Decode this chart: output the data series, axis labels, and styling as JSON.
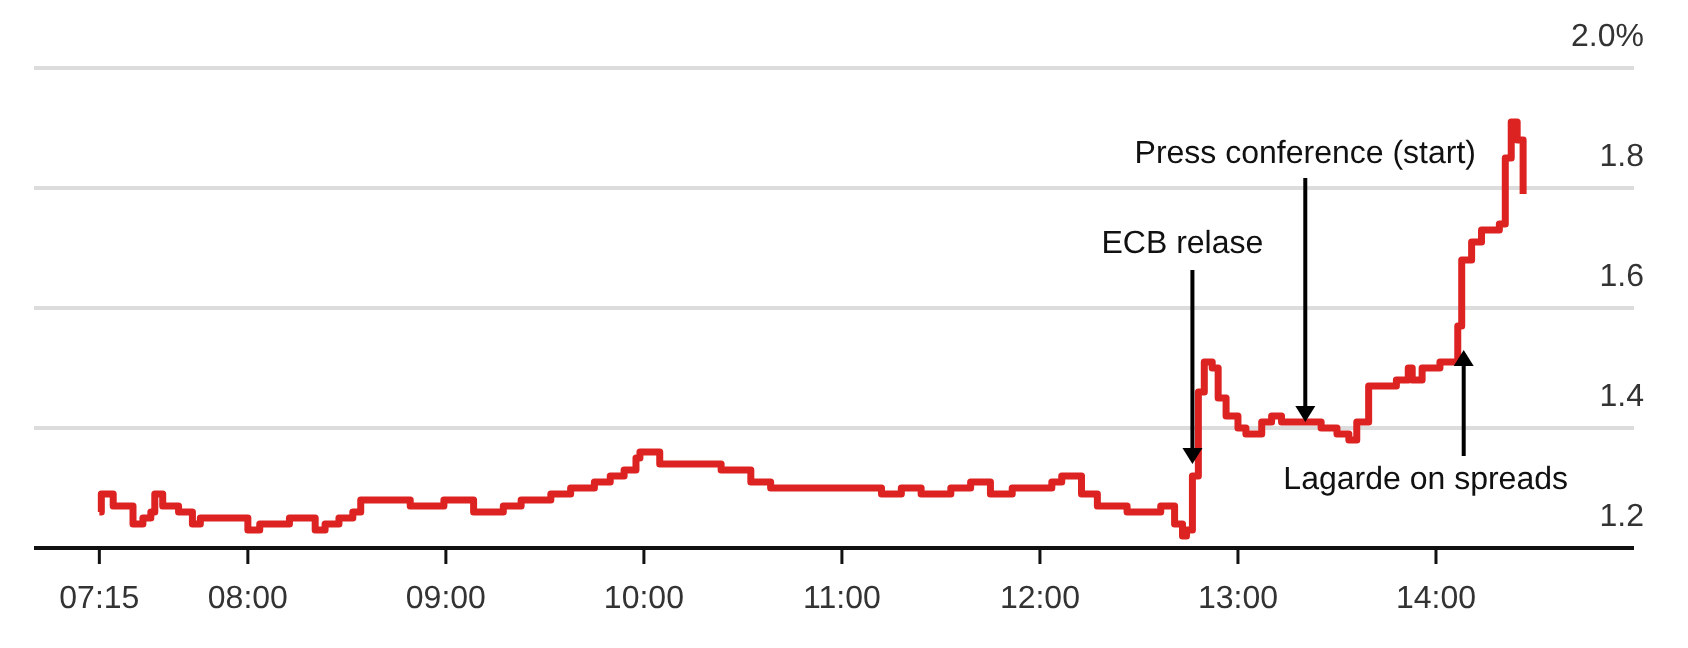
{
  "chart_data": {
    "type": "step",
    "color": "#dd2222",
    "x": [
      7.25,
      7.26,
      7.3,
      7.32,
      7.37,
      7.42,
      7.47,
      7.51,
      7.53,
      7.57,
      7.65,
      7.72,
      7.76,
      7.83,
      7.91,
      8.0,
      8.06,
      8.21,
      8.28,
      8.34,
      8.39,
      8.46,
      8.53,
      8.57,
      8.67,
      8.77,
      8.82,
      8.92,
      8.99,
      9.09,
      9.14,
      9.22,
      9.29,
      9.38,
      9.53,
      9.63,
      9.75,
      9.83,
      9.9,
      9.96,
      9.98,
      10.08,
      10.19,
      10.29,
      10.39,
      10.54,
      10.64,
      10.79,
      10.94,
      11.1,
      11.2,
      11.3,
      11.4,
      11.45,
      11.55,
      11.65,
      11.75,
      11.86,
      12.01,
      12.06,
      12.11,
      12.21,
      12.29,
      12.36,
      12.44,
      12.51,
      12.61,
      12.68,
      12.72,
      12.74,
      12.77,
      12.8,
      12.83,
      12.87,
      12.9,
      12.94,
      13.0,
      13.04,
      13.09,
      13.12,
      13.17,
      13.22,
      13.27,
      13.34,
      13.42,
      13.5,
      13.56,
      13.6,
      13.66,
      13.73,
      13.8,
      13.86,
      13.88,
      13.93,
      13.98,
      14.02,
      14.11,
      14.13,
      14.18,
      14.23,
      14.32,
      14.35,
      14.38,
      14.41,
      14.44
    ],
    "values": [
      1.26,
      1.29,
      1.29,
      1.27,
      1.27,
      1.24,
      1.25,
      1.26,
      1.29,
      1.27,
      1.26,
      1.24,
      1.25,
      1.25,
      1.25,
      1.23,
      1.24,
      1.25,
      1.25,
      1.23,
      1.24,
      1.25,
      1.26,
      1.28,
      1.28,
      1.28,
      1.27,
      1.27,
      1.28,
      1.28,
      1.26,
      1.26,
      1.27,
      1.28,
      1.29,
      1.3,
      1.31,
      1.32,
      1.33,
      1.35,
      1.36,
      1.34,
      1.34,
      1.34,
      1.33,
      1.31,
      1.3,
      1.3,
      1.3,
      1.3,
      1.29,
      1.3,
      1.29,
      1.29,
      1.3,
      1.31,
      1.29,
      1.3,
      1.3,
      1.31,
      1.32,
      1.29,
      1.27,
      1.27,
      1.26,
      1.26,
      1.27,
      1.24,
      1.22,
      1.23,
      1.32,
      1.46,
      1.51,
      1.5,
      1.45,
      1.42,
      1.4,
      1.39,
      1.39,
      1.41,
      1.42,
      1.41,
      1.41,
      1.41,
      1.4,
      1.39,
      1.38,
      1.41,
      1.47,
      1.47,
      1.48,
      1.5,
      1.48,
      1.5,
      1.5,
      1.51,
      1.57,
      1.68,
      1.71,
      1.73,
      1.74,
      1.85,
      1.91,
      1.88,
      1.79
    ],
    "xlim": [
      6.92,
      15.0
    ],
    "xticks": [
      {
        "value": 7.25,
        "label": "07:15"
      },
      {
        "value": 8,
        "label": "08:00"
      },
      {
        "value": 9,
        "label": "09:00"
      },
      {
        "value": 10,
        "label": "10:00"
      },
      {
        "value": 11,
        "label": "11:00"
      },
      {
        "value": 12,
        "label": "12:00"
      },
      {
        "value": 13,
        "label": "13:00"
      },
      {
        "value": 14,
        "label": "14:00"
      }
    ],
    "ylim": [
      1.2,
      2.0
    ],
    "yticks": [
      1.2,
      1.4,
      1.6,
      1.8,
      {
        "value": 2.0,
        "label": "2.0%"
      }
    ],
    "grid": "y",
    "marker": "none",
    "line_style": "solid",
    "annotations": [
      {
        "text": "ECB relase",
        "x": 12.77,
        "y": 1.34
      },
      {
        "text": "Press conference (start)",
        "x": 13.34,
        "y": 1.41
      },
      {
        "text": "Lagarde on spreads",
        "x": 14.14,
        "y": 1.53
      }
    ]
  }
}
